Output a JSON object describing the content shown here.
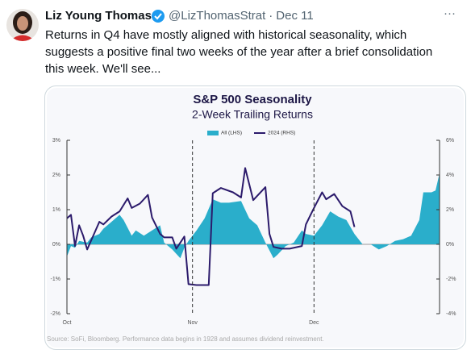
{
  "post": {
    "author": "Liz Young Thomas",
    "handle": "@LizThomasStrat",
    "separator": "·",
    "date": "Dec 11",
    "more": "···",
    "text_lines": [
      "Returns in Q4 have mostly aligned with historical seasonality, which",
      "suggests a positive final two weeks of the year after a brief consolidation",
      "this week. We'll see..."
    ]
  },
  "chart_data": {
    "type": "area-line",
    "title": "S&P 500 Seasonality",
    "subtitle": "2-Week Trailing Returns",
    "source": "Source: SoFi, Bloomberg. Performance data begins in 1928 and assumes dividend reinvestment.",
    "xlim": [
      0,
      92
    ],
    "xticks": [
      {
        "value": 0,
        "label": "Oct"
      },
      {
        "value": 31,
        "label": "Nov"
      },
      {
        "value": 61,
        "label": "Dec"
      }
    ],
    "ylim": [
      -2,
      3
    ],
    "yticks": [
      {
        "value": 3,
        "label": "3%"
      },
      {
        "value": 2,
        "label": "2%"
      },
      {
        "value": 1,
        "label": "1%"
      },
      {
        "value": 0,
        "label": "0%"
      },
      {
        "value": -1,
        "label": "-1%"
      },
      {
        "value": -2,
        "label": "-2%"
      }
    ],
    "y2lim": [
      -4,
      6
    ],
    "y2ticks": [
      {
        "value": 6,
        "label": "6%"
      },
      {
        "value": 4,
        "label": "4%"
      },
      {
        "value": 2,
        "label": "2%"
      },
      {
        "value": 0,
        "label": "0%"
      },
      {
        "value": -2,
        "label": "-2%"
      },
      {
        "value": -4,
        "label": "-4%"
      }
    ],
    "series": [
      {
        "name": "All (LHS)",
        "color": "#2aaecb",
        "style": "area",
        "x": [
          0,
          1,
          2,
          3,
          5,
          6,
          8,
          9,
          11,
          13,
          14,
          16,
          17,
          19,
          21,
          23,
          24,
          26,
          28,
          29,
          30,
          32,
          34,
          36,
          38,
          40,
          43,
          45,
          47,
          49,
          51,
          52,
          54,
          56,
          58,
          59,
          61,
          63,
          65,
          67,
          69,
          71,
          73,
          75,
          77,
          79,
          81,
          83,
          85,
          87,
          88,
          90,
          91,
          92
        ],
        "values": [
          -0.35,
          -0.05,
          -0.1,
          0.1,
          0.05,
          0.2,
          0.3,
          0.45,
          0.65,
          0.85,
          0.7,
          0.25,
          0.4,
          0.25,
          0.4,
          0.55,
          0.05,
          -0.15,
          -0.4,
          -0.1,
          0.1,
          0.4,
          0.75,
          1.3,
          1.2,
          1.2,
          1.25,
          0.75,
          0.55,
          0.05,
          -0.4,
          -0.3,
          -0.05,
          0.05,
          0.4,
          0.3,
          0.25,
          0.55,
          0.95,
          0.8,
          0.7,
          0.3,
          0,
          0,
          -0.15,
          -0.05,
          0.1,
          0.15,
          0.25,
          0.7,
          1.5,
          1.5,
          1.55,
          2.05
        ]
      },
      {
        "name": "2024 (RHS)",
        "color": "#2b1a6b",
        "style": "line",
        "axis": "y2",
        "x": [
          0,
          1,
          2,
          3,
          4,
          5,
          8,
          9,
          11,
          13,
          15,
          16,
          18,
          20,
          21,
          23,
          24,
          26,
          27,
          29,
          30,
          32,
          35,
          36,
          38,
          41,
          43,
          44,
          46,
          47,
          49,
          50,
          51,
          53,
          55,
          58,
          59,
          61,
          63,
          64,
          66,
          68,
          70,
          71
        ],
        "values": [
          1.5,
          1.7,
          -0.1,
          1.1,
          0.5,
          -0.3,
          1.3,
          1.15,
          1.6,
          1.9,
          2.65,
          2.1,
          2.35,
          2.85,
          1.55,
          0.6,
          0.4,
          0.4,
          -0.25,
          0.45,
          -2.3,
          -2.35,
          -2.35,
          2.95,
          3.25,
          3.0,
          2.7,
          4.4,
          2.55,
          2.8,
          3.3,
          0.6,
          -0.15,
          -0.25,
          -0.25,
          -0.1,
          1.15,
          2.1,
          3.0,
          2.6,
          2.9,
          2.2,
          1.9,
          1.0
        ]
      }
    ]
  }
}
